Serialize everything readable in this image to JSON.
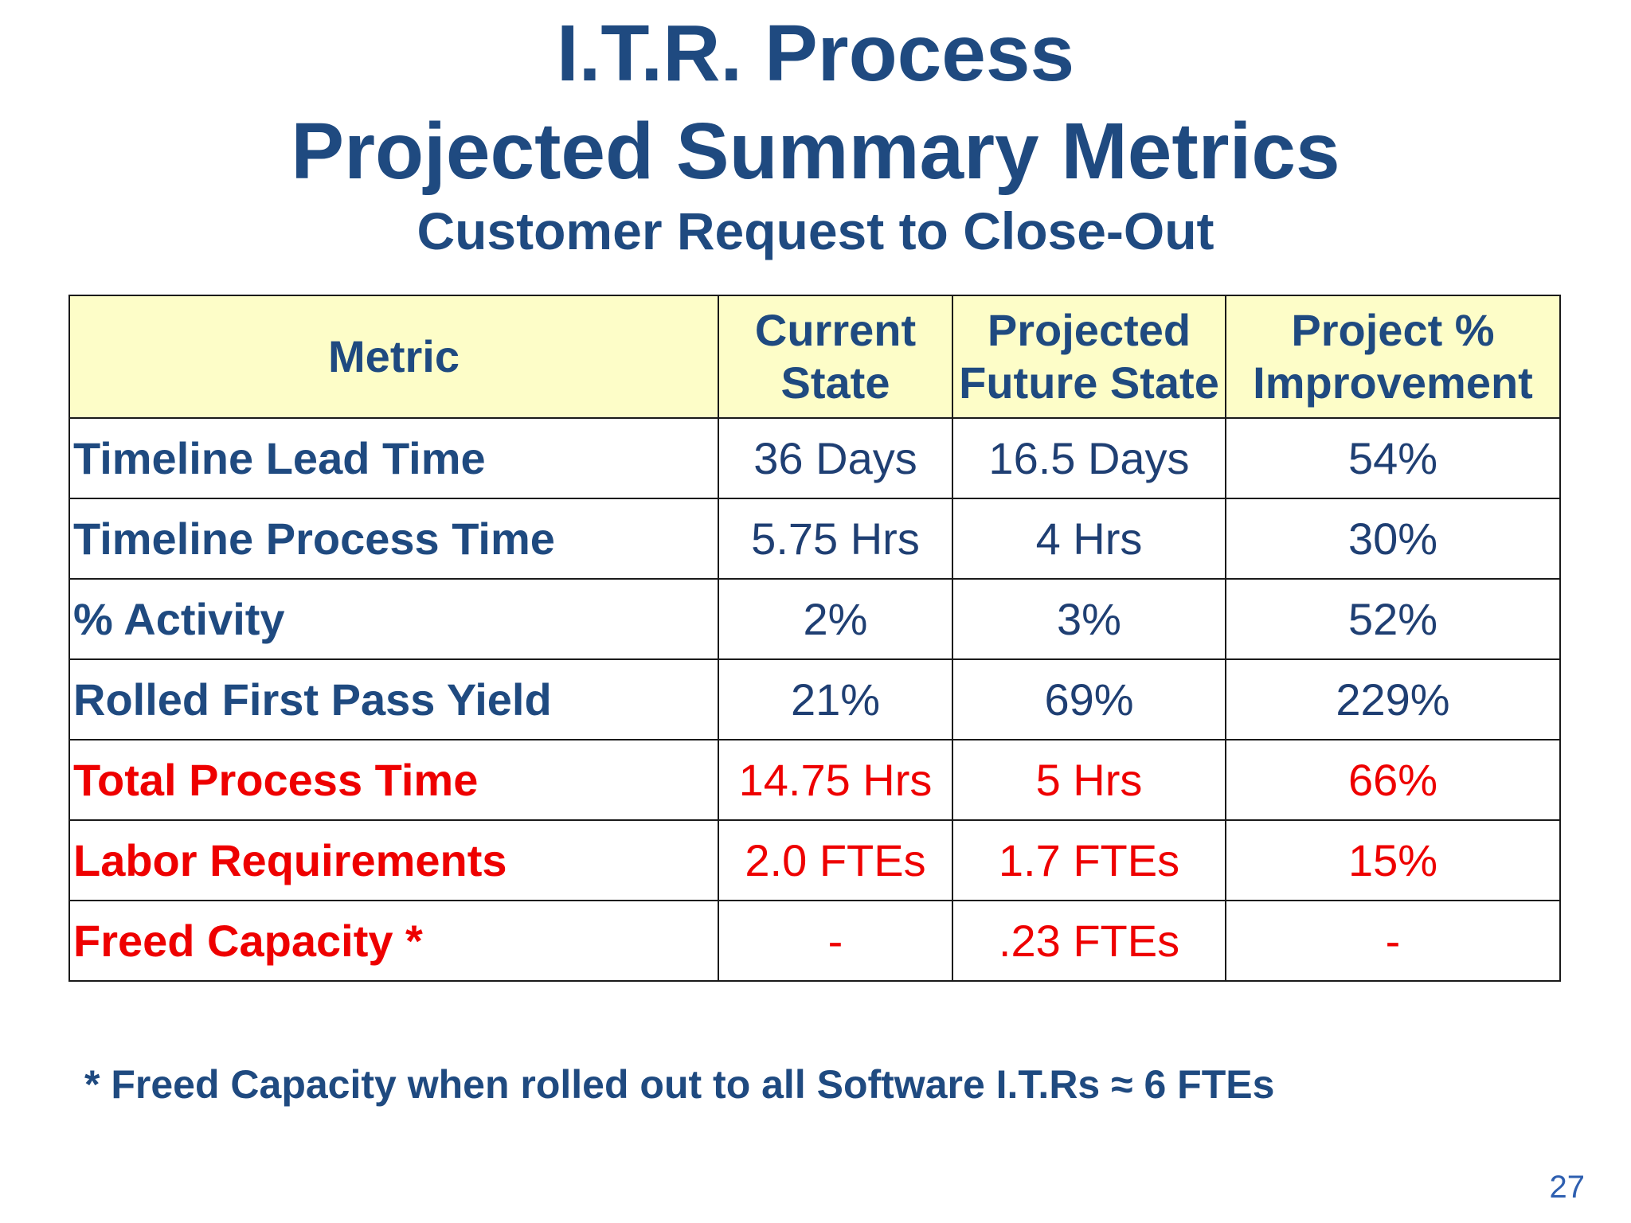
{
  "slide": {
    "title_line1": "I.T.R. Process",
    "title_line2": "Projected Summary Metrics",
    "subtitle": "Customer Request to Close-Out",
    "footnote": "* Freed Capacity when rolled out to all Software I.T.Rs ≈ 6 FTEs",
    "page_number": "27"
  },
  "table": {
    "headers": {
      "metric": "Metric",
      "current_line1": "Current",
      "current_line2": "State",
      "future_line1": "Projected",
      "future_line2": "Future State",
      "improvement_line1": "Project %",
      "improvement_line2": "Improvement"
    },
    "rows": [
      {
        "metric": "Timeline Lead Time",
        "current": "36 Days",
        "future": "16.5 Days",
        "improvement": "54%"
      },
      {
        "metric": "Timeline Process Time",
        "current": "5.75 Hrs",
        "future": "4 Hrs",
        "improvement": "30%"
      },
      {
        "metric": "% Activity",
        "current": "2%",
        "future": "3%",
        "improvement": "52%"
      },
      {
        "metric": "Rolled First Pass Yield",
        "current": "21%",
        "future": "69%",
        "improvement": "229%"
      },
      {
        "metric": "Total Process Time",
        "current": "14.75 Hrs",
        "future": "5 Hrs",
        "improvement": "66%"
      },
      {
        "metric": "Labor Requirements",
        "current": "2.0 FTEs",
        "future": "1.7 FTEs",
        "improvement": "15%"
      },
      {
        "metric": "Freed Capacity *",
        "current": "-",
        "future": ".23 FTEs",
        "improvement": "-"
      }
    ]
  },
  "colors": {
    "title": "#1f4a80",
    "text": "#1f3f73",
    "highlight": "#ee0000",
    "header_bg": "#fdfdc8",
    "page_number": "#2e5fb0"
  }
}
